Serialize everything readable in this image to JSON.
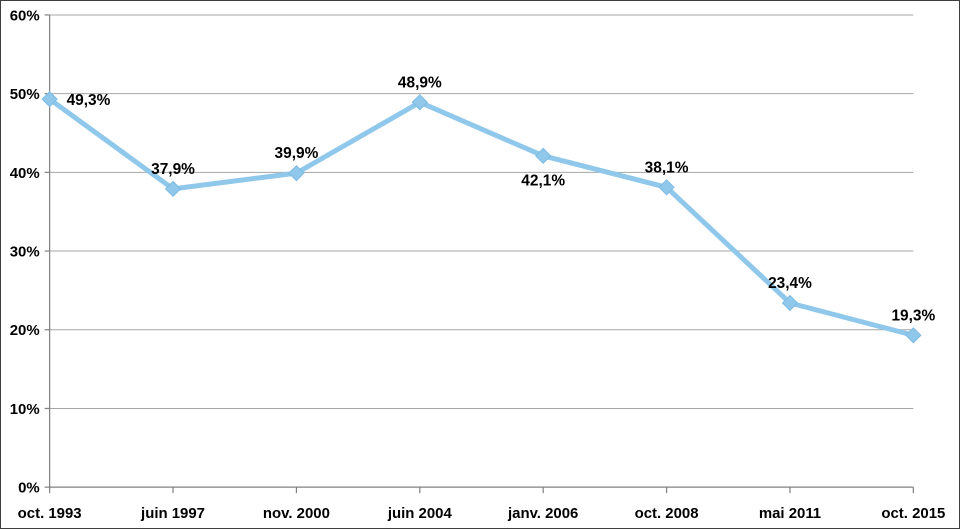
{
  "chart_data": {
    "type": "line",
    "title": "",
    "xlabel": "",
    "ylabel": "",
    "categories": [
      "oct. 1993",
      "juin 1997",
      "nov. 2000",
      "juin 2004",
      "janv. 2006",
      "oct. 2008",
      "mai 2011",
      "oct. 2015"
    ],
    "values": [
      49.3,
      37.9,
      39.9,
      48.9,
      42.1,
      38.1,
      23.4,
      19.3
    ],
    "data_labels": [
      "49,3%",
      "37,9%",
      "39,9%",
      "48,9%",
      "42,1%",
      "38,1%",
      "23,4%",
      "19,3%"
    ],
    "data_label_positions": [
      "right",
      "above",
      "above",
      "above",
      "below",
      "above",
      "above",
      "above"
    ],
    "y_ticks": [
      "0%",
      "10%",
      "20%",
      "30%",
      "40%",
      "50%",
      "60%"
    ],
    "y_tick_values": [
      0,
      10,
      20,
      30,
      40,
      50,
      60
    ],
    "ylim": [
      0,
      60
    ],
    "grid": true,
    "legend": "none",
    "marker": "diamond",
    "colors": {
      "line": "#8FC8EB",
      "marker_fill": "#8FC8EB",
      "marker_edge": "#7DBBE3",
      "gridline": "#A6A6A6",
      "axis": "#808080",
      "text": "#000000"
    }
  }
}
